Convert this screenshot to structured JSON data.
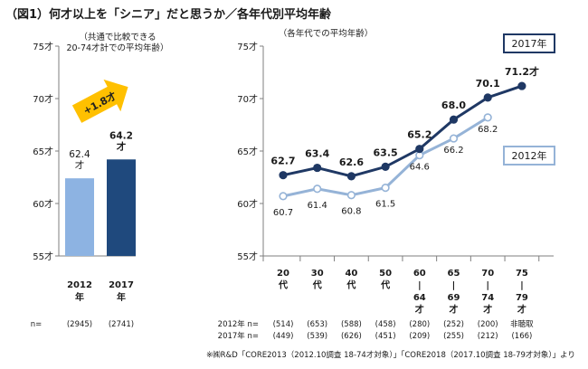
{
  "title": "（図1）何才以上を「シニア」だと思うか／各年代別平均年齢",
  "colors": {
    "bar_2012": "#8db3e2",
    "bar_2017": "#1f497d",
    "line_2017": "#1f3864",
    "line_2012": "#95b3d7",
    "arrow": "#ffc000",
    "axis": "#7f7f7f"
  },
  "chart_data": [
    {
      "type": "bar",
      "note": [
        "（共通で比較できる",
        "20-74才計での平均年齢）"
      ],
      "categories": [
        [
          "2012",
          "年"
        ],
        [
          "2017",
          "年"
        ]
      ],
      "values": [
        62.4,
        64.2
      ],
      "value_labels": [
        [
          "62.4",
          "才"
        ],
        [
          "64.2",
          "才"
        ]
      ],
      "ylim": [
        55,
        75
      ],
      "yticks": [
        "55才",
        "60才",
        "65才",
        "70才",
        "75才"
      ],
      "arrow_label": "+1.8才",
      "n_label": "n=",
      "n_values": [
        "(2945)",
        "(2741)"
      ]
    },
    {
      "type": "line",
      "note": "（各年代での平均年齢）",
      "ylim": [
        55,
        75
      ],
      "yticks": [
        "55才",
        "60才",
        "65才",
        "70才",
        "75才"
      ],
      "categories": [
        [
          "20",
          "代"
        ],
        [
          "30",
          "代"
        ],
        [
          "40",
          "代"
        ],
        [
          "50",
          "代"
        ],
        [
          "60",
          "|",
          "64",
          "才"
        ],
        [
          "65",
          "|",
          "69",
          "才"
        ],
        [
          "70",
          "|",
          "74",
          "才"
        ],
        [
          "75",
          "|",
          "79",
          "才"
        ]
      ],
      "series": [
        {
          "name": "2017年",
          "values": [
            62.7,
            63.4,
            62.6,
            63.5,
            65.2,
            68.0,
            70.1,
            71.2
          ],
          "labels": [
            "62.7",
            "63.4",
            "62.6",
            "63.5",
            "65.2",
            "68.0",
            "70.1",
            "71.2才"
          ]
        },
        {
          "name": "2012年",
          "values": [
            60.7,
            61.4,
            60.8,
            61.5,
            64.6,
            66.2,
            68.2,
            null
          ],
          "labels": [
            "60.7",
            "61.4",
            "60.8",
            "61.5",
            "64.6",
            "66.2",
            "68.2",
            ""
          ]
        }
      ],
      "n_rows": [
        {
          "label": "2012年 n=",
          "values": [
            "(514)",
            "(653)",
            "(588)",
            "(458)",
            "(280)",
            "(252)",
            "(200)",
            "非聴取"
          ]
        },
        {
          "label": "2017年 n=",
          "values": [
            "(449)",
            "(539)",
            "(626)",
            "(451)",
            "(209)",
            "(255)",
            "(212)",
            "(166)"
          ]
        }
      ]
    }
  ],
  "footnote": "※㈱R&D「CORE2013（2012.10調査 18-74才対象）」「CORE2018（2017.10調査 18-79才対象）」より"
}
